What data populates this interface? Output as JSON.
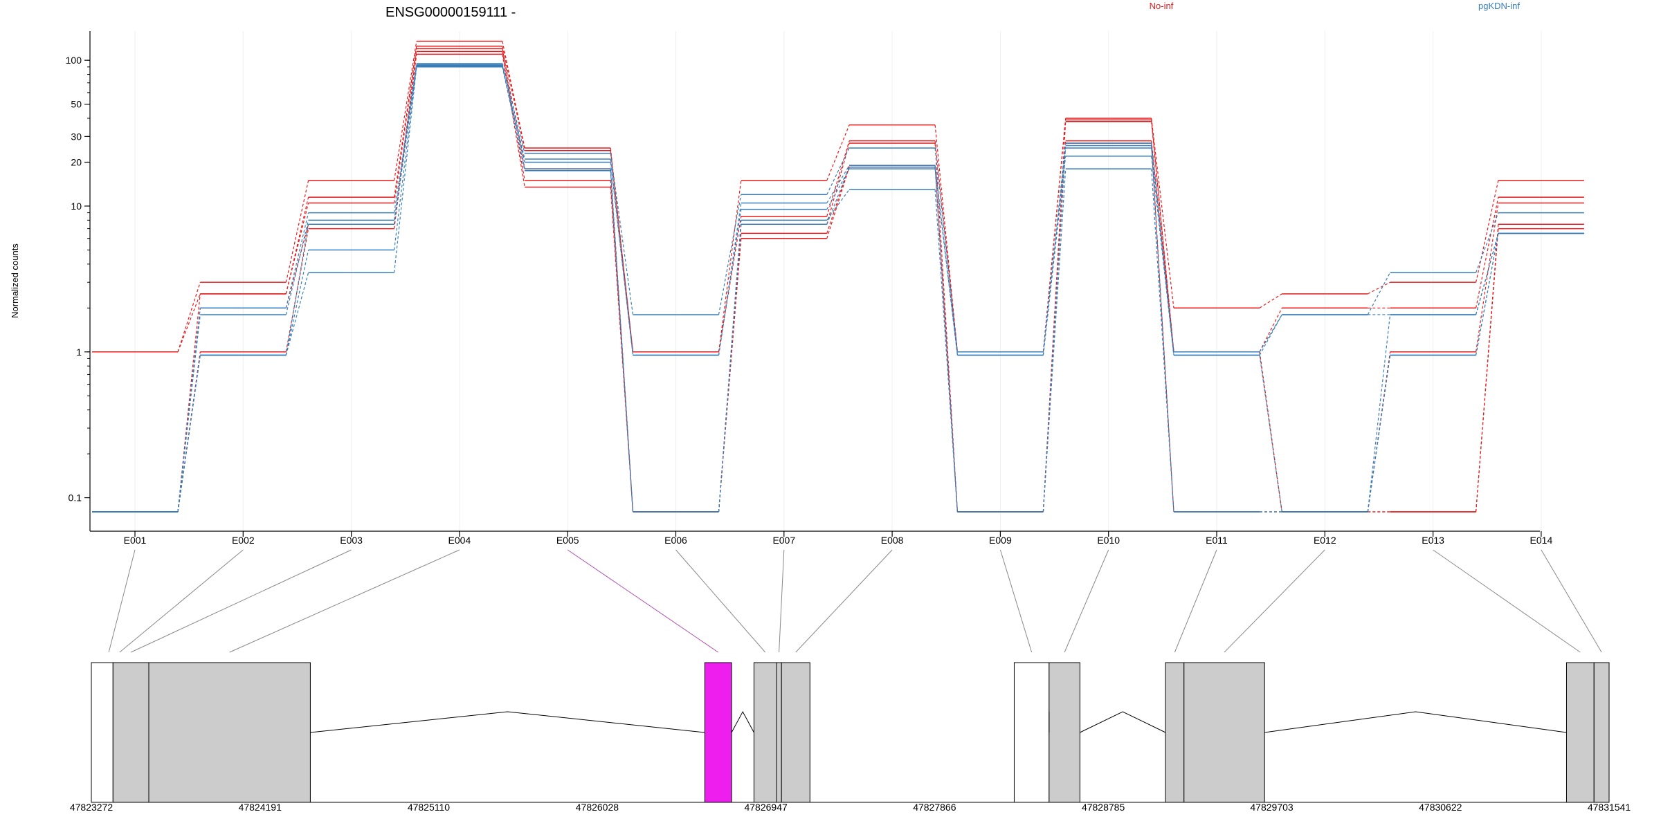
{
  "chart_data": {
    "type": "line",
    "title": "ENSG00000159111 -",
    "ylabel": "Normalized counts",
    "yscale": "log",
    "ylim": [
      0.08,
      150
    ],
    "y_ticks": [
      0.1,
      1,
      10,
      20,
      30,
      50,
      100
    ],
    "y_tick_labels": [
      "0.1",
      "1",
      "10",
      "20",
      "30",
      "50",
      "100"
    ],
    "categories": [
      "E001",
      "E002",
      "E003",
      "E004",
      "E005",
      "E006",
      "E007",
      "E008",
      "E009",
      "E010",
      "E011",
      "E012",
      "E013",
      "E014"
    ],
    "grid": true,
    "legend": [
      {
        "name": "No-inf",
        "color": "#e41a1c"
      },
      {
        "name": "pgKDN-inf",
        "color": "#377eb8"
      }
    ],
    "series": [
      {
        "group": "No-inf",
        "color": "#e41a1c",
        "values": [
          1,
          3.0,
          15,
          135,
          25,
          1,
          15,
          36,
          1,
          40,
          2.0,
          2.5,
          3.0,
          15
        ]
      },
      {
        "group": "No-inf",
        "color": "#e41a1c",
        "values": [
          1,
          2.5,
          11.5,
          125,
          24,
          1,
          8.5,
          28,
          1,
          39,
          1.0,
          2.0,
          2.0,
          11.5
        ]
      },
      {
        "group": "No-inf",
        "color": "#e41a1c",
        "values": [
          0.08,
          2.5,
          10.5,
          120,
          18,
          0.08,
          7.5,
          27,
          0.08,
          38,
          1.0,
          0.08,
          1.0,
          10.5
        ]
      },
      {
        "group": "No-inf",
        "color": "#e41a1c",
        "values": [
          0.08,
          2.0,
          7.5,
          115,
          15,
          0.08,
          6.5,
          19,
          0.08,
          28,
          1.0,
          0.08,
          0.08,
          7.5
        ]
      },
      {
        "group": "No-inf",
        "color": "#e41a1c",
        "values": [
          0.08,
          1.0,
          7.0,
          110,
          13.5,
          0.08,
          6.0,
          18.5,
          0.08,
          27,
          0.08,
          0.08,
          0.08,
          7.0
        ]
      },
      {
        "group": "pgKDN-inf",
        "color": "#377eb8",
        "values": [
          0.08,
          2.0,
          9.0,
          95,
          23,
          1.8,
          12,
          25,
          1,
          27,
          1.0,
          1.8,
          3.5,
          9.0
        ]
      },
      {
        "group": "pgKDN-inf",
        "color": "#377eb8",
        "values": [
          0.08,
          1.8,
          8.0,
          93,
          21,
          0.95,
          10.5,
          19,
          0.95,
          25,
          0.95,
          1.8,
          1.8,
          6.5
        ]
      },
      {
        "group": "pgKDN-inf",
        "color": "#377eb8",
        "values": [
          0.08,
          0.95,
          5.0,
          92,
          20,
          0.95,
          9.5,
          18,
          0.95,
          22,
          0.95,
          0.08,
          1.8,
          6.5
        ]
      },
      {
        "group": "pgKDN-inf",
        "color": "#377eb8",
        "values": [
          0.08,
          0.95,
          3.5,
          90,
          18,
          0.08,
          8.0,
          13,
          0.08,
          18,
          0.08,
          0.08,
          0.95,
          6.5
        ]
      },
      {
        "group": "pgKDN-inf",
        "color": "#377eb8",
        "values": [
          0.08,
          0.95,
          7.5,
          91,
          17.5,
          0.08,
          7.5,
          18.5,
          0.08,
          26,
          0.08,
          0.08,
          0.95,
          6.5
        ]
      }
    ],
    "gene_model": {
      "coord_ticks": [
        47823272,
        47824191,
        47825110,
        47826028,
        47826947,
        47827866,
        47828785,
        47829703,
        47830622,
        47831541
      ],
      "coord_tick_labels": [
        "47823272",
        "47824191",
        "47825110",
        "47826028",
        "47826947",
        "47827866",
        "47828785",
        "47829703",
        "47830622",
        "47831541"
      ],
      "highlight_exon": "E005",
      "highlight_color": "#ee1fee",
      "exon_color": "#cccccc",
      "exons": [
        {
          "id": "E001",
          "start": 47823272,
          "end": 47823462,
          "coding": false
        },
        {
          "id": "E002",
          "start": 47823462,
          "end": 47823390,
          "coding": true
        },
        {
          "id": "E003",
          "start": 47823390,
          "end": 47823585,
          "coding": true
        },
        {
          "id": "E004",
          "start": 47823585,
          "end": 47824465,
          "coding": true
        },
        {
          "id": "E005",
          "start": 47826614,
          "end": 47826760,
          "coding": true
        },
        {
          "id": "E006",
          "start": 47826882,
          "end": 47827005,
          "coding": true
        },
        {
          "id": "E007",
          "start": 47827005,
          "end": 47827032,
          "coding": true
        },
        {
          "id": "E008",
          "start": 47827032,
          "end": 47827187,
          "coding": true
        },
        {
          "id": "E009",
          "start": 47828300,
          "end": 47828490,
          "coding": false
        },
        {
          "id": "E010",
          "start": 47828490,
          "end": 47828658,
          "coding": true
        },
        {
          "id": "E011",
          "start": 47829124,
          "end": 47829225,
          "coding": true
        },
        {
          "id": "E012",
          "start": 47829225,
          "end": 47829664,
          "coding": true
        },
        {
          "id": "E013",
          "start": 47831309,
          "end": 47831459,
          "coding": true
        },
        {
          "id": "E014",
          "start": 47831459,
          "end": 47831541,
          "coding": true
        }
      ]
    }
  }
}
